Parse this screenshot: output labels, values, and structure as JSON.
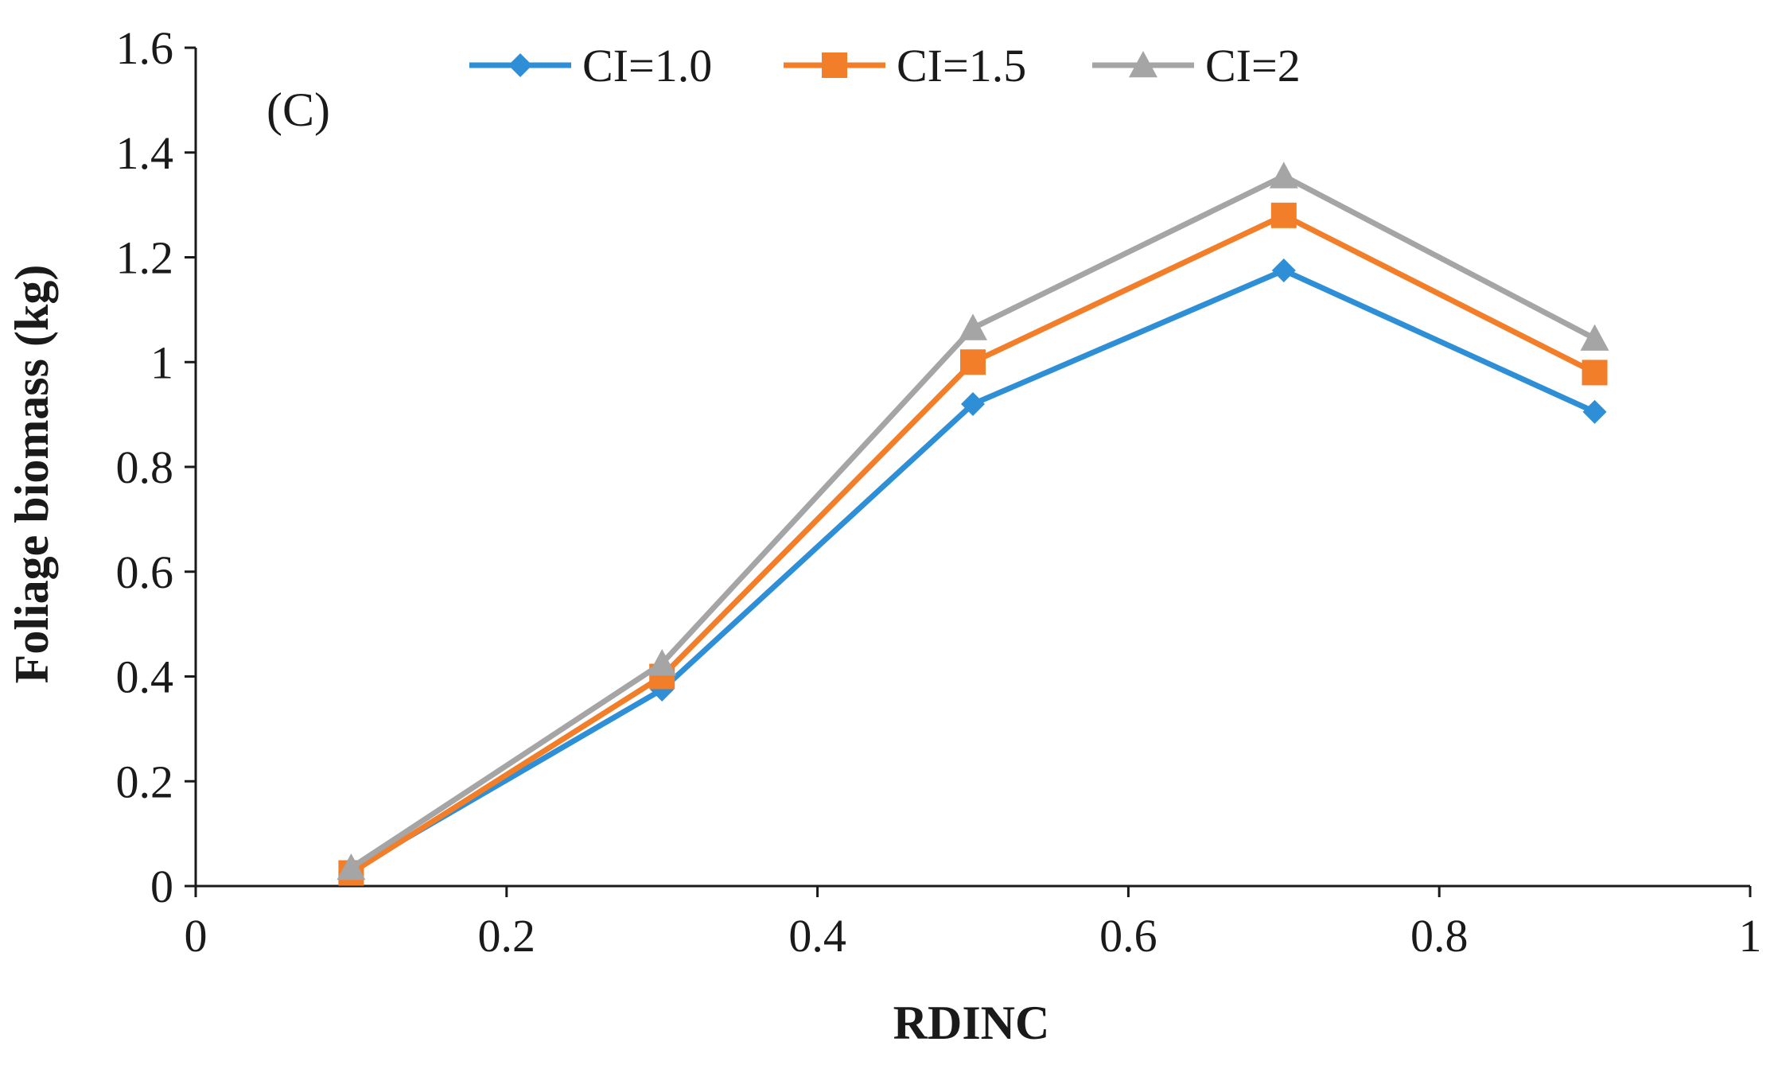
{
  "chart_data": {
    "type": "line",
    "panel_label": "(C)",
    "title": "",
    "xlabel": "RDINC",
    "ylabel": "Foliage biomass (kg)",
    "xlim": [
      0,
      1
    ],
    "ylim": [
      0,
      1.6
    ],
    "x_ticks": [
      0,
      0.2,
      0.4,
      0.6,
      0.8,
      1
    ],
    "x_tick_labels": [
      "0",
      "0.2",
      "0.4",
      "0.6",
      "0.8",
      "1"
    ],
    "y_ticks": [
      0,
      0.2,
      0.4,
      0.6,
      0.8,
      1,
      1.2,
      1.4,
      1.6
    ],
    "y_tick_labels": [
      "0",
      "0.2",
      "0.4",
      "0.6",
      "0.8",
      "1",
      "1.2",
      "1.4",
      "1.6"
    ],
    "grid": false,
    "legend_position": "top",
    "x": [
      0.1,
      0.3,
      0.5,
      0.7,
      0.9
    ],
    "series": [
      {
        "name": "CI=1.0",
        "marker": "diamond",
        "color": "#2E8FD6",
        "values": [
          0.03,
          0.375,
          0.92,
          1.175,
          0.905
        ]
      },
      {
        "name": "CI=1.5",
        "marker": "square",
        "color": "#F27E2A",
        "values": [
          0.025,
          0.4,
          1.0,
          1.28,
          0.98
        ]
      },
      {
        "name": "CI=2",
        "marker": "triangle",
        "color": "#A5A5A5",
        "values": [
          0.035,
          0.425,
          1.065,
          1.355,
          1.045
        ]
      }
    ]
  }
}
